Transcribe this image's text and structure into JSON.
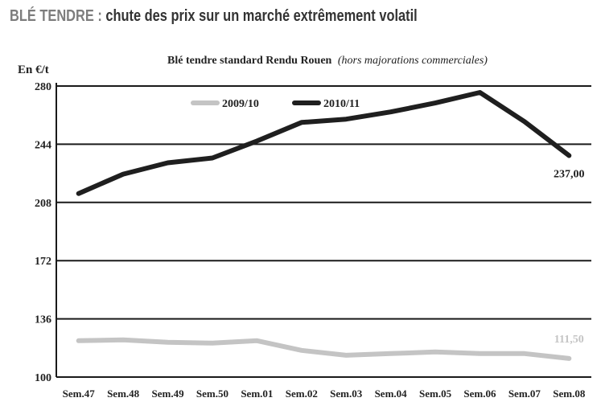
{
  "header": {
    "kicker": "BLÉ TENDRE :",
    "title": "chute des prix sur un marché extrêmement volatil"
  },
  "chart_data": {
    "type": "line",
    "title": "Blé tendre standard Rendu Rouen",
    "subtitle": "(hors majorations commerciales)",
    "ylabel": "En €/t",
    "xlabel": "",
    "categories": [
      "Sem.47",
      "Sem.48",
      "Sem.49",
      "Sem.50",
      "Sem.01",
      "Sem.02",
      "Sem.03",
      "Sem.04",
      "Sem.05",
      "Sem.06",
      "Sem.07",
      "Sem.08"
    ],
    "yticks": [
      100,
      136,
      172,
      208,
      244,
      280
    ],
    "ylim": [
      100,
      280
    ],
    "grid": true,
    "legend_position": "top",
    "series": [
      {
        "name": "2009/10",
        "color": "#c4c4c4",
        "values": [
          122.5,
          123,
          121.5,
          121,
          122.5,
          116.5,
          113.5,
          114.5,
          115.5,
          114.5,
          114.5,
          111.5
        ],
        "end_label": "111,50"
      },
      {
        "name": "2010/11",
        "color": "#1f1f1f",
        "values": [
          213.5,
          225.5,
          232.5,
          235.5,
          246,
          257.5,
          259.5,
          264,
          269.5,
          276,
          258,
          237
        ],
        "end_label": "237,00"
      }
    ]
  }
}
